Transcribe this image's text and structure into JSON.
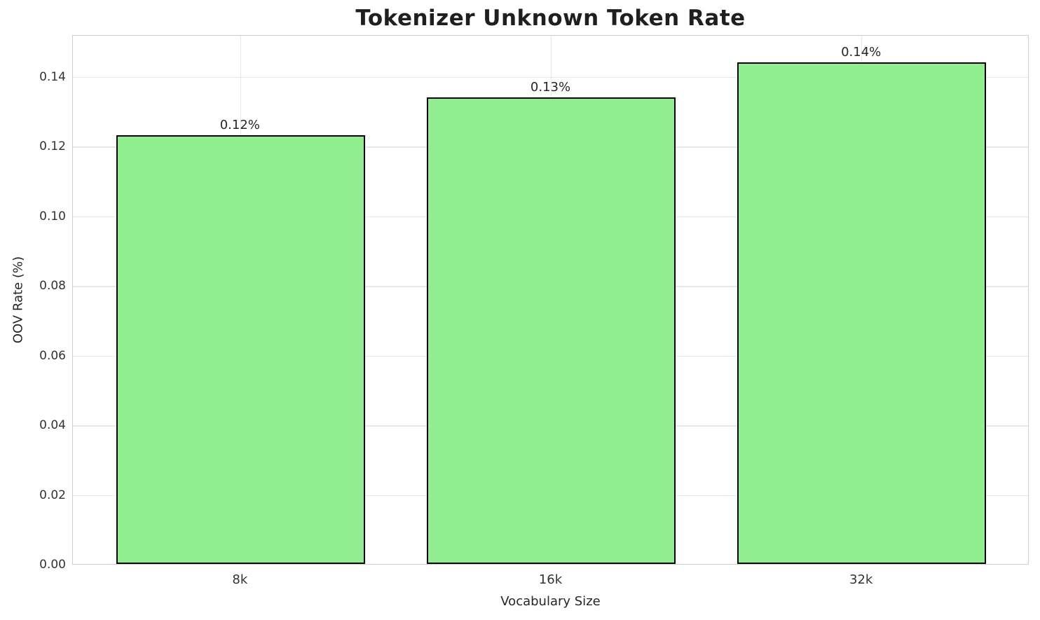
{
  "chart_data": {
    "type": "bar",
    "title": "Tokenizer Unknown Token Rate",
    "xlabel": "Vocabulary Size",
    "ylabel": "OOV Rate (%)",
    "categories": [
      "8k",
      "16k",
      "32k"
    ],
    "values": [
      0.123,
      0.134,
      0.144
    ],
    "bar_labels": [
      "0.12%",
      "0.13%",
      "0.14%"
    ],
    "yticks": [
      0.0,
      0.02,
      0.04,
      0.06,
      0.08,
      0.1,
      0.12,
      0.14
    ],
    "ytick_labels": [
      "0.00",
      "0.02",
      "0.04",
      "0.06",
      "0.08",
      "0.10",
      "0.12",
      "0.14"
    ],
    "ylim": [
      0,
      0.152
    ],
    "xlim": [
      -0.54,
      2.54
    ],
    "bar_width": 0.8,
    "bar_color": "#90EE90",
    "bar_edge_color": "#000000",
    "grid": true,
    "grid_color": "#e8e8e8",
    "spine_color": "#cfcfcf",
    "legend": false
  }
}
